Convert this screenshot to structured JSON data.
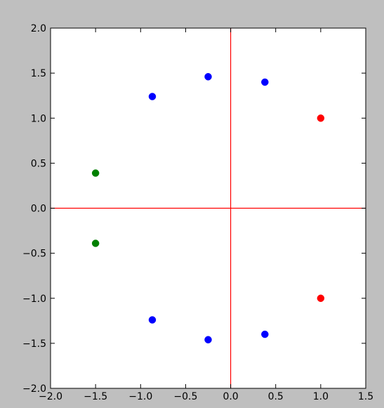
{
  "chart_data": {
    "type": "scatter",
    "title": "",
    "xlabel": "",
    "ylabel": "",
    "xlim": [
      -2.0,
      1.5
    ],
    "ylim": [
      -2.0,
      2.0
    ],
    "xticks": [
      "−2.0",
      "−1.5",
      "−1.0",
      "−0.5",
      "0.0",
      "0.5",
      "1.0",
      "1.5"
    ],
    "yticks": [
      "−2.0",
      "−1.5",
      "−1.0",
      "−0.5",
      "0.0",
      "0.5",
      "1.0",
      "1.5",
      "2.0"
    ],
    "xtick_values": [
      -2.0,
      -1.5,
      -1.0,
      -0.5,
      0.0,
      0.5,
      1.0,
      1.5
    ],
    "ytick_values": [
      -2.0,
      -1.5,
      -1.0,
      -0.5,
      0.0,
      0.5,
      1.0,
      1.5,
      2.0
    ],
    "grid": false,
    "reference_lines": {
      "color": "#ff0000",
      "x": 0.0,
      "y": 0.0
    },
    "series": [
      {
        "color": "#ff0000",
        "points": [
          [
            1.0,
            1.0
          ],
          [
            1.0,
            -1.0
          ]
        ]
      },
      {
        "color": "#0000ff",
        "points": [
          [
            -0.87,
            1.24
          ],
          [
            -0.25,
            1.46
          ],
          [
            0.38,
            1.4
          ],
          [
            -0.87,
            -1.24
          ],
          [
            -0.25,
            -1.46
          ],
          [
            0.38,
            -1.4
          ]
        ]
      },
      {
        "color": "#008000",
        "points": [
          [
            -1.5,
            0.39
          ],
          [
            -1.5,
            -0.39
          ]
        ]
      }
    ]
  }
}
